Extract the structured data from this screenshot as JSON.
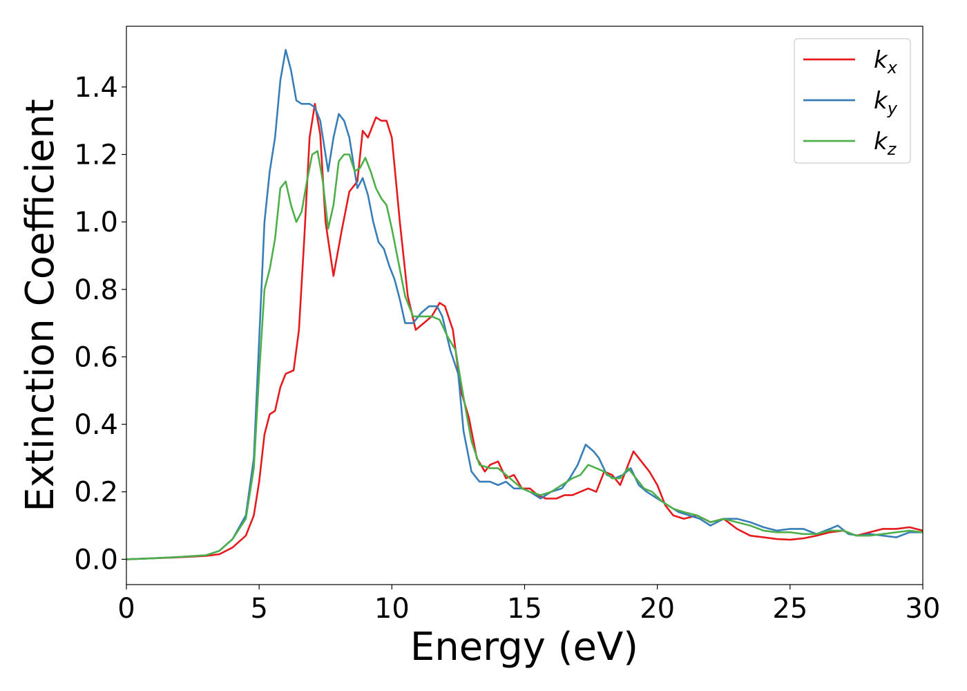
{
  "chart_data": {
    "type": "line",
    "xlabel": "Energy (eV)",
    "ylabel": "Extinction Coefficient",
    "xlim": [
      0,
      30
    ],
    "ylim": [
      -0.075,
      1.58
    ],
    "xticks": [
      0,
      5,
      10,
      15,
      20,
      25,
      30
    ],
    "xtick_labels": [
      "0",
      "5",
      "10",
      "15",
      "20",
      "25",
      "30"
    ],
    "yticks": [
      0.0,
      0.2,
      0.4,
      0.6,
      0.8,
      1.0,
      1.2,
      1.4
    ],
    "ytick_labels": [
      "0.0",
      "0.2",
      "0.4",
      "0.6",
      "0.8",
      "1.0",
      "1.2",
      "1.4"
    ],
    "grid": false,
    "legend_position": "top-right",
    "series": [
      {
        "name": "k_x",
        "label_base": "k",
        "label_sub": "x",
        "color": "#e41a1c",
        "points": [
          [
            0,
            0
          ],
          [
            1,
            0.003
          ],
          [
            2,
            0.006
          ],
          [
            3,
            0.01
          ],
          [
            3.5,
            0.015
          ],
          [
            4,
            0.035
          ],
          [
            4.5,
            0.07
          ],
          [
            4.8,
            0.13
          ],
          [
            5.0,
            0.23
          ],
          [
            5.2,
            0.37
          ],
          [
            5.4,
            0.43
          ],
          [
            5.6,
            0.44
          ],
          [
            5.8,
            0.51
          ],
          [
            6.0,
            0.55
          ],
          [
            6.3,
            0.56
          ],
          [
            6.5,
            0.68
          ],
          [
            6.7,
            0.95
          ],
          [
            6.9,
            1.25
          ],
          [
            7.1,
            1.35
          ],
          [
            7.3,
            1.26
          ],
          [
            7.5,
            1.0
          ],
          [
            7.8,
            0.84
          ],
          [
            8.1,
            0.97
          ],
          [
            8.4,
            1.09
          ],
          [
            8.7,
            1.12
          ],
          [
            8.9,
            1.27
          ],
          [
            9.1,
            1.25
          ],
          [
            9.4,
            1.31
          ],
          [
            9.6,
            1.3
          ],
          [
            9.8,
            1.3
          ],
          [
            10.0,
            1.25
          ],
          [
            10.3,
            1.0
          ],
          [
            10.6,
            0.78
          ],
          [
            10.9,
            0.68
          ],
          [
            11.2,
            0.7
          ],
          [
            11.5,
            0.72
          ],
          [
            11.8,
            0.76
          ],
          [
            12.0,
            0.75
          ],
          [
            12.3,
            0.68
          ],
          [
            12.6,
            0.5
          ],
          [
            12.9,
            0.42
          ],
          [
            13.2,
            0.3
          ],
          [
            13.5,
            0.26
          ],
          [
            13.7,
            0.28
          ],
          [
            14.0,
            0.29
          ],
          [
            14.3,
            0.24
          ],
          [
            14.6,
            0.25
          ],
          [
            14.9,
            0.21
          ],
          [
            15.2,
            0.21
          ],
          [
            15.5,
            0.19
          ],
          [
            15.8,
            0.18
          ],
          [
            16.2,
            0.18
          ],
          [
            16.5,
            0.19
          ],
          [
            16.8,
            0.19
          ],
          [
            17.1,
            0.2
          ],
          [
            17.4,
            0.21
          ],
          [
            17.7,
            0.2
          ],
          [
            18.0,
            0.26
          ],
          [
            18.3,
            0.25
          ],
          [
            18.6,
            0.22
          ],
          [
            18.9,
            0.28
          ],
          [
            19.1,
            0.32
          ],
          [
            19.4,
            0.29
          ],
          [
            19.7,
            0.26
          ],
          [
            20.0,
            0.22
          ],
          [
            20.3,
            0.16
          ],
          [
            20.6,
            0.13
          ],
          [
            21.0,
            0.12
          ],
          [
            21.5,
            0.13
          ],
          [
            22.0,
            0.11
          ],
          [
            22.5,
            0.12
          ],
          [
            23.0,
            0.09
          ],
          [
            23.5,
            0.07
          ],
          [
            24.0,
            0.065
          ],
          [
            24.5,
            0.06
          ],
          [
            25.0,
            0.058
          ],
          [
            25.5,
            0.062
          ],
          [
            26.0,
            0.07
          ],
          [
            26.5,
            0.08
          ],
          [
            27.0,
            0.085
          ],
          [
            27.5,
            0.07
          ],
          [
            28.0,
            0.08
          ],
          [
            28.5,
            0.09
          ],
          [
            29.0,
            0.09
          ],
          [
            29.5,
            0.095
          ],
          [
            30,
            0.085
          ]
        ]
      },
      {
        "name": "k_y",
        "label_base": "k",
        "label_sub": "y",
        "color": "#377eb8",
        "points": [
          [
            0,
            0
          ],
          [
            1,
            0.003
          ],
          [
            2,
            0.007
          ],
          [
            3,
            0.012
          ],
          [
            3.5,
            0.025
          ],
          [
            4,
            0.06
          ],
          [
            4.5,
            0.13
          ],
          [
            4.8,
            0.3
          ],
          [
            5.0,
            0.65
          ],
          [
            5.2,
            1.0
          ],
          [
            5.4,
            1.15
          ],
          [
            5.6,
            1.25
          ],
          [
            5.8,
            1.42
          ],
          [
            6.0,
            1.51
          ],
          [
            6.2,
            1.45
          ],
          [
            6.4,
            1.36
          ],
          [
            6.6,
            1.35
          ],
          [
            6.9,
            1.35
          ],
          [
            7.1,
            1.34
          ],
          [
            7.3,
            1.3
          ],
          [
            7.6,
            1.15
          ],
          [
            7.8,
            1.25
          ],
          [
            8.0,
            1.32
          ],
          [
            8.2,
            1.3
          ],
          [
            8.4,
            1.25
          ],
          [
            8.6,
            1.15
          ],
          [
            8.7,
            1.1
          ],
          [
            8.9,
            1.13
          ],
          [
            9.1,
            1.08
          ],
          [
            9.3,
            1.0
          ],
          [
            9.5,
            0.94
          ],
          [
            9.7,
            0.92
          ],
          [
            9.9,
            0.87
          ],
          [
            10.1,
            0.83
          ],
          [
            10.3,
            0.77
          ],
          [
            10.5,
            0.7
          ],
          [
            10.8,
            0.7
          ],
          [
            11.1,
            0.73
          ],
          [
            11.4,
            0.75
          ],
          [
            11.7,
            0.75
          ],
          [
            11.9,
            0.72
          ],
          [
            12.2,
            0.62
          ],
          [
            12.5,
            0.55
          ],
          [
            12.7,
            0.38
          ],
          [
            13.0,
            0.26
          ],
          [
            13.3,
            0.23
          ],
          [
            13.7,
            0.23
          ],
          [
            14.0,
            0.22
          ],
          [
            14.3,
            0.23
          ],
          [
            14.6,
            0.21
          ],
          [
            14.9,
            0.21
          ],
          [
            15.2,
            0.2
          ],
          [
            15.6,
            0.18
          ],
          [
            16.0,
            0.2
          ],
          [
            16.4,
            0.21
          ],
          [
            16.7,
            0.24
          ],
          [
            17.0,
            0.28
          ],
          [
            17.3,
            0.34
          ],
          [
            17.6,
            0.32
          ],
          [
            17.8,
            0.3
          ],
          [
            18.1,
            0.25
          ],
          [
            18.4,
            0.24
          ],
          [
            18.7,
            0.25
          ],
          [
            19.0,
            0.27
          ],
          [
            19.3,
            0.22
          ],
          [
            19.6,
            0.2
          ],
          [
            20.0,
            0.18
          ],
          [
            20.4,
            0.16
          ],
          [
            20.8,
            0.14
          ],
          [
            21.2,
            0.13
          ],
          [
            21.6,
            0.12
          ],
          [
            22.0,
            0.1
          ],
          [
            22.5,
            0.12
          ],
          [
            23.0,
            0.12
          ],
          [
            23.5,
            0.11
          ],
          [
            24.0,
            0.095
          ],
          [
            24.5,
            0.085
          ],
          [
            25.0,
            0.09
          ],
          [
            25.5,
            0.09
          ],
          [
            26.0,
            0.075
          ],
          [
            26.5,
            0.09
          ],
          [
            26.8,
            0.1
          ],
          [
            27.2,
            0.075
          ],
          [
            27.6,
            0.07
          ],
          [
            28.0,
            0.075
          ],
          [
            28.5,
            0.07
          ],
          [
            29.0,
            0.065
          ],
          [
            29.5,
            0.08
          ],
          [
            30,
            0.08
          ]
        ]
      },
      {
        "name": "k_z",
        "label_base": "k",
        "label_sub": "z",
        "color": "#4daf4a",
        "points": [
          [
            0,
            0
          ],
          [
            1,
            0.003
          ],
          [
            2,
            0.007
          ],
          [
            3,
            0.012
          ],
          [
            3.5,
            0.025
          ],
          [
            4,
            0.06
          ],
          [
            4.5,
            0.12
          ],
          [
            4.8,
            0.27
          ],
          [
            5.0,
            0.55
          ],
          [
            5.2,
            0.8
          ],
          [
            5.4,
            0.86
          ],
          [
            5.6,
            0.95
          ],
          [
            5.8,
            1.1
          ],
          [
            6.0,
            1.12
          ],
          [
            6.2,
            1.05
          ],
          [
            6.4,
            1.0
          ],
          [
            6.6,
            1.03
          ],
          [
            6.8,
            1.12
          ],
          [
            7.0,
            1.2
          ],
          [
            7.2,
            1.21
          ],
          [
            7.4,
            1.12
          ],
          [
            7.6,
            0.98
          ],
          [
            7.8,
            1.05
          ],
          [
            8.0,
            1.18
          ],
          [
            8.2,
            1.2
          ],
          [
            8.4,
            1.2
          ],
          [
            8.6,
            1.15
          ],
          [
            8.8,
            1.16
          ],
          [
            9.0,
            1.19
          ],
          [
            9.2,
            1.15
          ],
          [
            9.4,
            1.1
          ],
          [
            9.6,
            1.07
          ],
          [
            9.8,
            1.05
          ],
          [
            10.0,
            0.98
          ],
          [
            10.2,
            0.9
          ],
          [
            10.5,
            0.78
          ],
          [
            10.8,
            0.72
          ],
          [
            11.1,
            0.72
          ],
          [
            11.5,
            0.72
          ],
          [
            11.8,
            0.71
          ],
          [
            12.1,
            0.66
          ],
          [
            12.4,
            0.62
          ],
          [
            12.7,
            0.48
          ],
          [
            13.0,
            0.35
          ],
          [
            13.3,
            0.28
          ],
          [
            13.7,
            0.27
          ],
          [
            14.0,
            0.27
          ],
          [
            14.3,
            0.25
          ],
          [
            14.6,
            0.23
          ],
          [
            14.9,
            0.21
          ],
          [
            15.2,
            0.2
          ],
          [
            15.6,
            0.19
          ],
          [
            16.0,
            0.2
          ],
          [
            16.4,
            0.22
          ],
          [
            16.8,
            0.24
          ],
          [
            17.1,
            0.25
          ],
          [
            17.4,
            0.28
          ],
          [
            17.7,
            0.27
          ],
          [
            18.0,
            0.26
          ],
          [
            18.3,
            0.24
          ],
          [
            18.6,
            0.24
          ],
          [
            18.9,
            0.27
          ],
          [
            19.2,
            0.24
          ],
          [
            19.5,
            0.21
          ],
          [
            19.8,
            0.2
          ],
          [
            20.2,
            0.17
          ],
          [
            20.6,
            0.15
          ],
          [
            21.0,
            0.14
          ],
          [
            21.5,
            0.13
          ],
          [
            22.0,
            0.11
          ],
          [
            22.5,
            0.12
          ],
          [
            23.0,
            0.11
          ],
          [
            23.5,
            0.1
          ],
          [
            24.0,
            0.085
          ],
          [
            24.5,
            0.08
          ],
          [
            25.0,
            0.08
          ],
          [
            25.5,
            0.075
          ],
          [
            26.0,
            0.075
          ],
          [
            26.5,
            0.085
          ],
          [
            27.0,
            0.085
          ],
          [
            27.5,
            0.07
          ],
          [
            28.0,
            0.07
          ],
          [
            28.5,
            0.075
          ],
          [
            29.0,
            0.08
          ],
          [
            29.5,
            0.085
          ],
          [
            30,
            0.08
          ]
        ]
      }
    ]
  }
}
